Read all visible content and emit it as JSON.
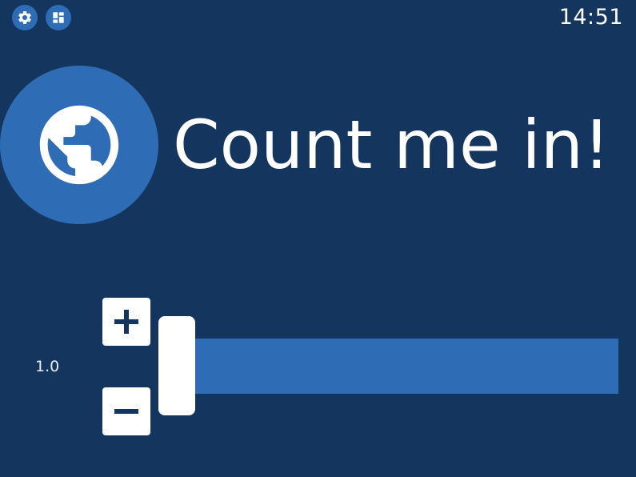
{
  "status_bar": {
    "settings_icon": "gear-icon",
    "dashboard_icon": "dashboard-icon",
    "time": "14:51"
  },
  "hero": {
    "icon": "globe-icon",
    "title": "Count me in!"
  },
  "slider": {
    "value": "1.0",
    "increment_icon": "plus-icon",
    "decrement_icon": "minus-icon"
  },
  "colors": {
    "background": "#14355d",
    "accent": "#2e6db5",
    "foreground": "#ffffff"
  }
}
